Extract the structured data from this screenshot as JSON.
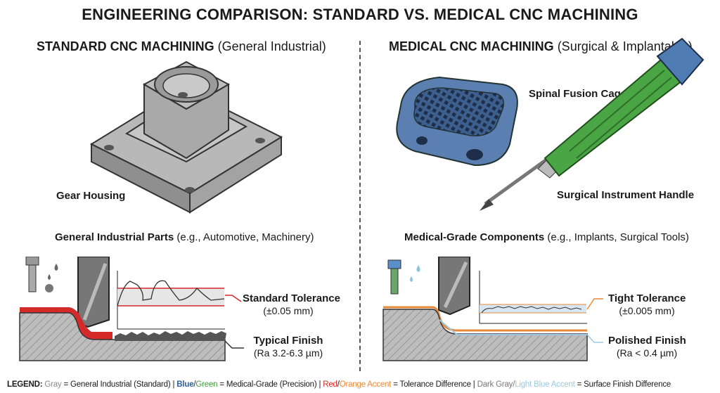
{
  "title": "ENGINEERING COMPARISON: STANDARD VS. MEDICAL CNC MACHINING",
  "left": {
    "heading_bold": "STANDARD CNC MACHINING",
    "heading_rest": "(General Industrial)",
    "part_label": "Gear Housing",
    "section_bold": "General Industrial Parts",
    "section_rest": "(e.g., Automotive, Machinery)",
    "tolerance_label": "Standard Tolerance",
    "tolerance_value": "(±0.05 mm)",
    "finish_label": "Typical Finish",
    "finish_value": "(Ra 3.2-6.3 µm)"
  },
  "right": {
    "heading_bold": "MEDICAL CNC MACHINING",
    "heading_rest": "(Surgical & Implantable)",
    "part1_label": "Spinal Fusion Cage",
    "part2_label": "Surgical Instrument Handle",
    "section_bold": "Medical-Grade Components",
    "section_rest": "(e.g., Implants, Surgical Tools)",
    "tolerance_label": "Tight Tolerance",
    "tolerance_value": "(±0.005 mm)",
    "finish_label": "Polished Finish",
    "finish_value": "(Ra < 0.4 µm)"
  },
  "legend": {
    "prefix": "LEGEND:",
    "gray": "Gray",
    "gray_desc": "= General Industrial (Standard) |",
    "blue": "Blue",
    "slash1": "/",
    "green": "Green",
    "bg_desc": "= Medical-Grade (Precision) |",
    "red": "Red",
    "slash2": "/",
    "orange": "Orange Accent",
    "ro_desc": "= Tolerance Difference |",
    "darkgray": "Dark Gray/",
    "lightblue": "Light Blue Accent",
    "dl_desc": "= Surface Finish Difference"
  },
  "colors": {
    "gray": "#8a8a8a",
    "blue": "#2f5f9e",
    "green": "#3f9a3a",
    "red": "#d42a2a",
    "orange": "#e88a3a",
    "light_blue": "#9cc9e0"
  }
}
